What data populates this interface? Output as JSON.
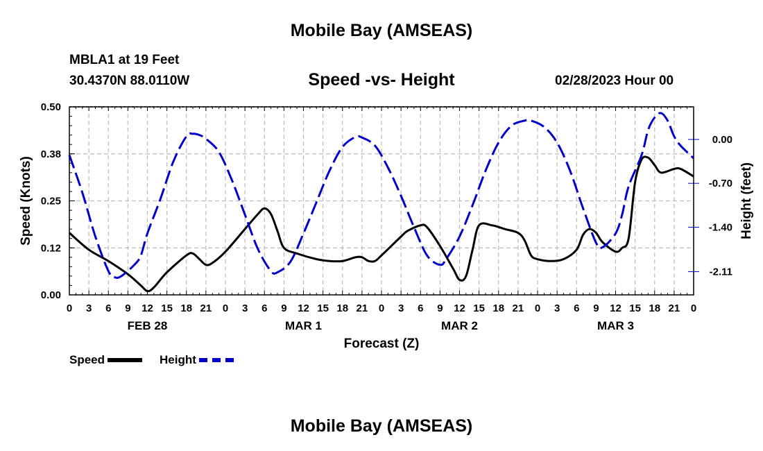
{
  "header": {
    "title": "Mobile Bay (AMSEAS)",
    "station": "MBLA1 at 19 Feet",
    "coords": "30.4370N  88.0110W",
    "subtitle": "Speed -vs- Height",
    "datetime": "02/28/2023 Hour 00"
  },
  "footer": {
    "title": "Mobile Bay (AMSEAS)"
  },
  "legend": {
    "speed_label": "Speed",
    "height_label": "Height"
  },
  "colors": {
    "speed": "#000000",
    "height": "#0000cc",
    "grid": "#bbbbbb"
  },
  "chart_data": {
    "type": "line",
    "title": "Speed -vs- Height",
    "xlabel": "Forecast (Z)",
    "ylabel_left": "Speed (Knots)",
    "ylabel_right": "Height (feet)",
    "x_range_hours": [
      0,
      96
    ],
    "x_tick_step_hours": 3,
    "x_tick_labels": [
      "0",
      "3",
      "6",
      "9",
      "12",
      "15",
      "18",
      "21",
      "0",
      "3",
      "6",
      "9",
      "12",
      "15",
      "18",
      "21",
      "0",
      "3",
      "6",
      "9",
      "12",
      "15",
      "18",
      "21",
      "0",
      "3",
      "6",
      "9",
      "12",
      "15",
      "18",
      "21",
      "0"
    ],
    "day_labels": [
      {
        "label": "FEB 28",
        "hour": 12
      },
      {
        "label": "MAR 1",
        "hour": 36
      },
      {
        "label": "MAR 2",
        "hour": 60
      },
      {
        "label": "MAR 3",
        "hour": 84
      }
    ],
    "ylim_left": [
      0,
      0.5
    ],
    "y_ticks_left": [
      0.0,
      0.125,
      0.25,
      0.375,
      0.5
    ],
    "y_tick_labels_left": [
      "0.00",
      "0.12",
      "0.25",
      "0.38",
      "0.50"
    ],
    "ylim_right": [
      -2.48,
      0.52
    ],
    "y_ticks_right": [
      0.0,
      -0.7,
      -1.4,
      -2.11
    ],
    "y_tick_labels_right": [
      "0.00",
      "-0.70",
      "-1.40",
      "-2.11"
    ],
    "series": [
      {
        "name": "Speed",
        "axis": "left",
        "style": "solid",
        "points": [
          [
            0,
            0.165
          ],
          [
            3,
            0.12
          ],
          [
            6,
            0.09
          ],
          [
            9,
            0.055
          ],
          [
            11,
            0.025
          ],
          [
            12,
            0.01
          ],
          [
            13,
            0.02
          ],
          [
            15,
            0.06
          ],
          [
            18,
            0.105
          ],
          [
            19,
            0.11
          ],
          [
            20,
            0.095
          ],
          [
            21,
            0.08
          ],
          [
            22,
            0.085
          ],
          [
            24,
            0.115
          ],
          [
            27,
            0.175
          ],
          [
            29,
            0.215
          ],
          [
            30,
            0.23
          ],
          [
            31,
            0.215
          ],
          [
            32,
            0.17
          ],
          [
            33,
            0.125
          ],
          [
            35,
            0.11
          ],
          [
            38,
            0.095
          ],
          [
            40,
            0.09
          ],
          [
            42,
            0.09
          ],
          [
            44,
            0.1
          ],
          [
            45,
            0.1
          ],
          [
            46,
            0.09
          ],
          [
            47,
            0.09
          ],
          [
            48,
            0.105
          ],
          [
            51,
            0.155
          ],
          [
            52,
            0.17
          ],
          [
            54,
            0.185
          ],
          [
            55,
            0.18
          ],
          [
            57,
            0.13
          ],
          [
            59,
            0.07
          ],
          [
            60,
            0.04
          ],
          [
            61,
            0.05
          ],
          [
            62,
            0.12
          ],
          [
            63,
            0.185
          ],
          [
            65,
            0.185
          ],
          [
            67,
            0.175
          ],
          [
            69,
            0.165
          ],
          [
            70,
            0.145
          ],
          [
            71,
            0.105
          ],
          [
            72,
            0.095
          ],
          [
            74,
            0.09
          ],
          [
            76,
            0.095
          ],
          [
            78,
            0.12
          ],
          [
            79,
            0.16
          ],
          [
            80,
            0.175
          ],
          [
            81,
            0.165
          ],
          [
            82,
            0.14
          ],
          [
            84,
            0.115
          ],
          [
            85,
            0.125
          ],
          [
            86,
            0.15
          ],
          [
            87,
            0.3
          ],
          [
            88,
            0.36
          ],
          [
            89,
            0.365
          ],
          [
            90,
            0.345
          ],
          [
            91,
            0.325
          ],
          [
            93,
            0.335
          ],
          [
            94,
            0.335
          ],
          [
            96,
            0.315
          ]
        ]
      },
      {
        "name": "Height",
        "axis": "right",
        "style": "dashed",
        "points": [
          [
            0,
            -0.25
          ],
          [
            2,
            -0.85
          ],
          [
            4,
            -1.55
          ],
          [
            6,
            -2.1
          ],
          [
            7,
            -2.2
          ],
          [
            8,
            -2.18
          ],
          [
            10,
            -2.0
          ],
          [
            11,
            -1.85
          ],
          [
            12,
            -1.5
          ],
          [
            14,
            -0.95
          ],
          [
            16,
            -0.35
          ],
          [
            18,
            0.05
          ],
          [
            19,
            0.09
          ],
          [
            20,
            0.07
          ],
          [
            21,
            0.01
          ],
          [
            23,
            -0.2
          ],
          [
            25,
            -0.65
          ],
          [
            27,
            -1.2
          ],
          [
            29,
            -1.75
          ],
          [
            31,
            -2.1
          ],
          [
            32,
            -2.12
          ],
          [
            34,
            -1.95
          ],
          [
            36,
            -1.5
          ],
          [
            38,
            -1.0
          ],
          [
            40,
            -0.5
          ],
          [
            42,
            -0.12
          ],
          [
            44,
            0.04
          ],
          [
            45,
            0.03
          ],
          [
            47,
            -0.1
          ],
          [
            49,
            -0.45
          ],
          [
            51,
            -0.9
          ],
          [
            53,
            -1.4
          ],
          [
            55,
            -1.85
          ],
          [
            57,
            -2.0
          ],
          [
            58,
            -1.9
          ],
          [
            60,
            -1.55
          ],
          [
            62,
            -1.05
          ],
          [
            64,
            -0.5
          ],
          [
            66,
            -0.05
          ],
          [
            68,
            0.22
          ],
          [
            70,
            0.3
          ],
          [
            71,
            0.3
          ],
          [
            73,
            0.2
          ],
          [
            75,
            -0.05
          ],
          [
            77,
            -0.5
          ],
          [
            79,
            -1.1
          ],
          [
            81,
            -1.65
          ],
          [
            82,
            -1.72
          ],
          [
            84,
            -1.5
          ],
          [
            85,
            -1.2
          ],
          [
            86,
            -0.75
          ],
          [
            88,
            -0.25
          ],
          [
            89,
            0.15
          ],
          [
            90,
            0.35
          ],
          [
            91,
            0.42
          ],
          [
            92,
            0.3
          ],
          [
            93,
            0.05
          ],
          [
            94,
            -0.1
          ],
          [
            96,
            -0.3
          ]
        ]
      }
    ]
  }
}
